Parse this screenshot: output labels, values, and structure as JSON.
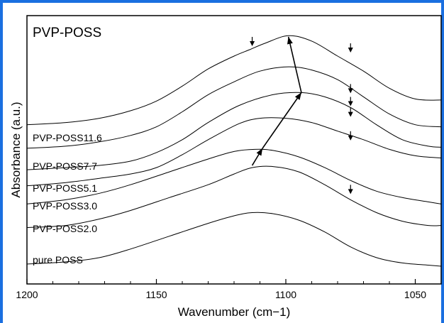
{
  "chart_data": {
    "type": "line",
    "title": "PVP-POSS",
    "xlabel": "Wavenumber (cm−1)",
    "ylabel": "Absorbance (a.u.)",
    "xlim": [
      1200,
      1040
    ],
    "x_ticks": [
      "1200",
      "1150",
      "1100",
      "1050"
    ],
    "y_ticks_visible": false,
    "series": [
      {
        "name": "pure POSS",
        "points": [
          [
            1200,
            0.02
          ],
          [
            1185,
            0.03
          ],
          [
            1172,
            0.05
          ],
          [
            1160,
            0.09
          ],
          [
            1145,
            0.15
          ],
          [
            1130,
            0.21
          ],
          [
            1120,
            0.245
          ],
          [
            1113,
            0.26
          ],
          [
            1105,
            0.255
          ],
          [
            1095,
            0.225
          ],
          [
            1085,
            0.17
          ],
          [
            1075,
            0.1
          ],
          [
            1065,
            0.05
          ],
          [
            1055,
            0.025
          ],
          [
            1045,
            0.015
          ],
          [
            1040,
            0.01
          ]
        ]
      },
      {
        "name": "PVP-POSS2.0",
        "points": [
          [
            1200,
            0.19
          ],
          [
            1185,
            0.2
          ],
          [
            1172,
            0.23
          ],
          [
            1160,
            0.27
          ],
          [
            1145,
            0.33
          ],
          [
            1130,
            0.39
          ],
          [
            1120,
            0.44
          ],
          [
            1113,
            0.47
          ],
          [
            1105,
            0.475
          ],
          [
            1095,
            0.45
          ],
          [
            1085,
            0.39
          ],
          [
            1075,
            0.32
          ],
          [
            1065,
            0.26
          ],
          [
            1055,
            0.22
          ],
          [
            1045,
            0.2
          ],
          [
            1040,
            0.2
          ]
        ]
      },
      {
        "name": "PVP-POSS3.0",
        "points": [
          [
            1200,
            0.3
          ],
          [
            1185,
            0.32
          ],
          [
            1172,
            0.35
          ],
          [
            1160,
            0.39
          ],
          [
            1145,
            0.45
          ],
          [
            1130,
            0.51
          ],
          [
            1120,
            0.545
          ],
          [
            1112,
            0.555
          ],
          [
            1105,
            0.55
          ],
          [
            1095,
            0.52
          ],
          [
            1085,
            0.47
          ],
          [
            1075,
            0.41
          ],
          [
            1065,
            0.36
          ],
          [
            1055,
            0.33
          ],
          [
            1045,
            0.31
          ],
          [
            1040,
            0.3
          ]
        ]
      },
      {
        "name": "PVP-POSS5.1",
        "points": [
          [
            1200,
            0.385
          ],
          [
            1185,
            0.4
          ],
          [
            1172,
            0.42
          ],
          [
            1160,
            0.44
          ],
          [
            1150,
            0.47
          ],
          [
            1140,
            0.53
          ],
          [
            1130,
            0.6
          ],
          [
            1118,
            0.675
          ],
          [
            1110,
            0.7
          ],
          [
            1100,
            0.7
          ],
          [
            1090,
            0.68
          ],
          [
            1080,
            0.64
          ],
          [
            1070,
            0.6
          ],
          [
            1060,
            0.555
          ],
          [
            1050,
            0.525
          ],
          [
            1040,
            0.515
          ]
        ]
      },
      {
        "name": "PVP-POSS7.7",
        "points": [
          [
            1200,
            0.46
          ],
          [
            1185,
            0.47
          ],
          [
            1172,
            0.48
          ],
          [
            1160,
            0.5
          ],
          [
            1150,
            0.54
          ],
          [
            1140,
            0.6
          ],
          [
            1130,
            0.68
          ],
          [
            1118,
            0.76
          ],
          [
            1105,
            0.81
          ],
          [
            1094,
            0.82
          ],
          [
            1085,
            0.8
          ],
          [
            1075,
            0.75
          ],
          [
            1065,
            0.67
          ],
          [
            1055,
            0.6
          ],
          [
            1045,
            0.57
          ],
          [
            1040,
            0.565
          ]
        ]
      },
      {
        "name": "PVP-POSS11.6",
        "points": [
          [
            1200,
            0.56
          ],
          [
            1185,
            0.57
          ],
          [
            1172,
            0.59
          ],
          [
            1160,
            0.62
          ],
          [
            1150,
            0.66
          ],
          [
            1140,
            0.73
          ],
          [
            1130,
            0.81
          ],
          [
            1120,
            0.87
          ],
          [
            1110,
            0.92
          ],
          [
            1099,
            0.94
          ],
          [
            1090,
            0.925
          ],
          [
            1080,
            0.88
          ],
          [
            1070,
            0.8
          ],
          [
            1060,
            0.72
          ],
          [
            1050,
            0.67
          ],
          [
            1040,
            0.66
          ]
        ]
      },
      {
        "name": "PVP-POSS",
        "points": [
          [
            1200,
            0.67
          ],
          [
            1185,
            0.68
          ],
          [
            1172,
            0.7
          ],
          [
            1160,
            0.735
          ],
          [
            1150,
            0.78
          ],
          [
            1140,
            0.85
          ],
          [
            1130,
            0.93
          ],
          [
            1120,
            0.99
          ],
          [
            1114,
            1.02
          ],
          [
            1108,
            1.05
          ],
          [
            1099,
            1.085
          ],
          [
            1090,
            1.06
          ],
          [
            1080,
            0.99
          ],
          [
            1070,
            0.92
          ],
          [
            1060,
            0.84
          ],
          [
            1050,
            0.79
          ],
          [
            1040,
            0.785
          ]
        ]
      }
    ],
    "annotations": {
      "shift_arrows": [
        {
          "from": [
            1113,
            0.48
          ],
          "to": [
            1109,
            0.56
          ]
        },
        {
          "from": [
            1109,
            0.56
          ],
          "to": [
            1094,
            0.82
          ]
        },
        {
          "from": [
            1094,
            0.82
          ],
          "to": [
            1099,
            1.08
          ]
        }
      ],
      "markers": [
        {
          "x": 1113,
          "y": 1.02
        },
        {
          "x": 1075,
          "y": 0.99
        },
        {
          "x": 1075,
          "y": 0.8
        },
        {
          "x": 1075,
          "y": 0.74
        },
        {
          "x": 1075,
          "y": 0.69
        },
        {
          "x": 1075,
          "y": 0.58
        },
        {
          "x": 1075,
          "y": 0.33
        }
      ]
    }
  },
  "colors": {
    "frame": "#1a6fe0",
    "ink": "#000000"
  }
}
